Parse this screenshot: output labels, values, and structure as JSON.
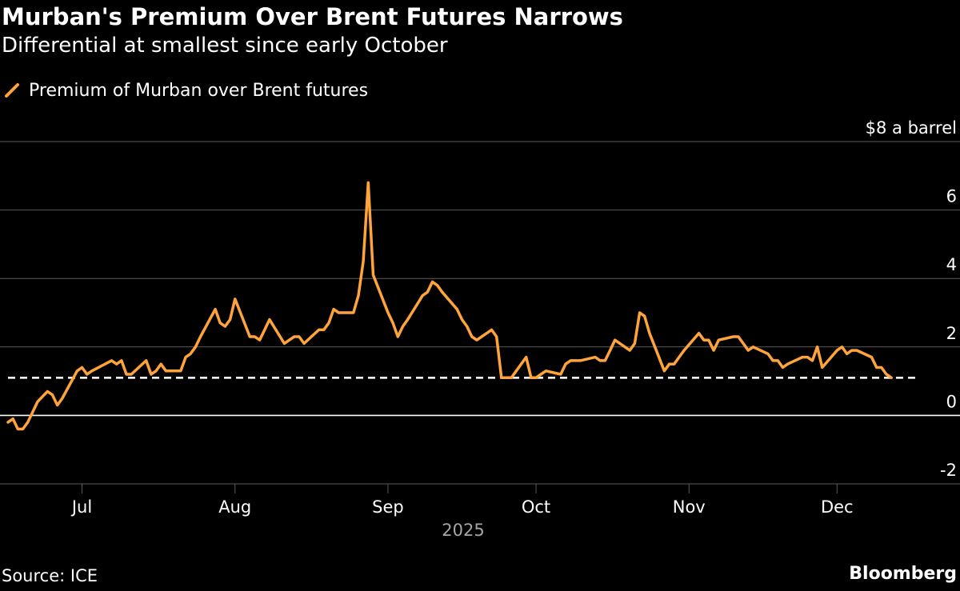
{
  "header": {
    "title": "Murban's Premium Over Brent Futures Narrows",
    "subtitle": "Differential at smallest since early October"
  },
  "footer": {
    "source": "Source: ICE",
    "brand": "Bloomberg"
  },
  "colors": {
    "series": "#FFA43A",
    "grid": "#5a5a5a",
    "zero": "#ffffff",
    "reference": "#ffffff",
    "text": "#ffffff",
    "year": "#a6a6a6"
  },
  "chart_data": {
    "type": "line",
    "title": "Murban's Premium Over Brent Futures Narrows",
    "subtitle": "Differential at smallest since early October",
    "legend": {
      "placement": "top-left",
      "entries": [
        "Premium of Murban over Brent futures"
      ]
    },
    "yaxis": {
      "ylim": [
        -2,
        8
      ],
      "ticks": [
        8,
        6,
        4,
        2,
        0,
        -2
      ],
      "tick_labels": [
        "$8 a barrel",
        "6",
        "4",
        "2",
        "0",
        "-2"
      ],
      "position": "right",
      "grid": true
    },
    "xaxis": {
      "xlim": [
        "2025-06-16",
        "2025-12-17"
      ],
      "ticks": [
        "2025-07-01",
        "2025-08-01",
        "2025-09-01",
        "2025-10-01",
        "2025-11-01",
        "2025-12-01"
      ],
      "tick_labels": [
        "Jul",
        "Aug",
        "Sep",
        "Oct",
        "Nov",
        "Dec"
      ],
      "year_label": "2025"
    },
    "reference_line": {
      "y": 1.1,
      "style": "dashed"
    },
    "series": [
      {
        "name": "Premium of Murban over Brent futures",
        "x": [
          "2025-06-16",
          "2025-06-17",
          "2025-06-18",
          "2025-06-19",
          "2025-06-20",
          "2025-06-22",
          "2025-06-24",
          "2025-06-25",
          "2025-06-26",
          "2025-06-27",
          "2025-06-30",
          "2025-07-01",
          "2025-07-02",
          "2025-07-03",
          "2025-07-07",
          "2025-07-08",
          "2025-07-09",
          "2025-07-10",
          "2025-07-11",
          "2025-07-14",
          "2025-07-15",
          "2025-07-16",
          "2025-07-17",
          "2025-07-18",
          "2025-07-21",
          "2025-07-22",
          "2025-07-23",
          "2025-07-24",
          "2025-07-25",
          "2025-07-28",
          "2025-07-29",
          "2025-07-30",
          "2025-07-31",
          "2025-08-01",
          "2025-08-04",
          "2025-08-05",
          "2025-08-06",
          "2025-08-07",
          "2025-08-08",
          "2025-08-11",
          "2025-08-12",
          "2025-08-13",
          "2025-08-14",
          "2025-08-15",
          "2025-08-18",
          "2025-08-19",
          "2025-08-20",
          "2025-08-21",
          "2025-08-22",
          "2025-08-25",
          "2025-08-26",
          "2025-08-27",
          "2025-08-28",
          "2025-08-29",
          "2025-09-01",
          "2025-09-02",
          "2025-09-03",
          "2025-09-04",
          "2025-09-05",
          "2025-09-08",
          "2025-09-09",
          "2025-09-10",
          "2025-09-11",
          "2025-09-12",
          "2025-09-15",
          "2025-09-16",
          "2025-09-17",
          "2025-09-18",
          "2025-09-19",
          "2025-09-22",
          "2025-09-23",
          "2025-09-24",
          "2025-09-25",
          "2025-09-26",
          "2025-09-29",
          "2025-09-30",
          "2025-10-01",
          "2025-10-02",
          "2025-10-03",
          "2025-10-06",
          "2025-10-07",
          "2025-10-08",
          "2025-10-09",
          "2025-10-10",
          "2025-10-13",
          "2025-10-14",
          "2025-10-15",
          "2025-10-16",
          "2025-10-17",
          "2025-10-20",
          "2025-10-21",
          "2025-10-22",
          "2025-10-23",
          "2025-10-24",
          "2025-10-27",
          "2025-10-28",
          "2025-10-29",
          "2025-10-30",
          "2025-10-31",
          "2025-11-03",
          "2025-11-04",
          "2025-11-05",
          "2025-11-06",
          "2025-11-07",
          "2025-11-10",
          "2025-11-11",
          "2025-11-12",
          "2025-11-13",
          "2025-11-14",
          "2025-11-17",
          "2025-11-18",
          "2025-11-19",
          "2025-11-20",
          "2025-11-21",
          "2025-11-24",
          "2025-11-25",
          "2025-11-26",
          "2025-11-27",
          "2025-11-28",
          "2025-12-01",
          "2025-12-02",
          "2025-12-03",
          "2025-12-04",
          "2025-12-05",
          "2025-12-08",
          "2025-12-09",
          "2025-12-10",
          "2025-12-11",
          "2025-12-12"
        ],
        "values": [
          -0.2,
          -0.1,
          -0.4,
          -0.4,
          -0.2,
          0.4,
          0.7,
          0.6,
          0.3,
          0.5,
          1.3,
          1.4,
          1.2,
          1.3,
          1.6,
          1.5,
          1.6,
          1.2,
          1.2,
          1.6,
          1.2,
          1.3,
          1.5,
          1.3,
          1.3,
          1.7,
          1.8,
          2.0,
          2.3,
          3.1,
          2.7,
          2.6,
          2.8,
          3.4,
          2.3,
          2.3,
          2.2,
          2.5,
          2.8,
          2.1,
          2.2,
          2.3,
          2.3,
          2.1,
          2.5,
          2.5,
          2.7,
          3.1,
          3.0,
          3.0,
          3.5,
          4.5,
          6.8,
          4.1,
          3.0,
          2.7,
          2.3,
          2.6,
          2.8,
          3.5,
          3.6,
          3.9,
          3.8,
          3.6,
          3.1,
          2.8,
          2.6,
          2.3,
          2.2,
          2.5,
          2.3,
          1.1,
          1.1,
          1.1,
          1.7,
          1.1,
          1.1,
          1.2,
          1.3,
          1.2,
          1.5,
          1.6,
          1.6,
          1.6,
          1.7,
          1.6,
          1.6,
          1.9,
          2.2,
          1.9,
          2.1,
          3.0,
          2.9,
          2.4,
          1.3,
          1.5,
          1.5,
          1.7,
          1.9,
          2.4,
          2.2,
          2.2,
          1.9,
          2.2,
          2.3,
          2.3,
          2.1,
          1.9,
          2.0,
          1.8,
          1.6,
          1.6,
          1.4,
          1.5,
          1.7,
          1.7,
          1.6,
          2.0,
          1.4,
          1.9,
          2.0,
          1.8,
          1.9,
          1.9,
          1.7,
          1.4,
          1.4,
          1.2,
          1.1
        ]
      }
    ]
  }
}
